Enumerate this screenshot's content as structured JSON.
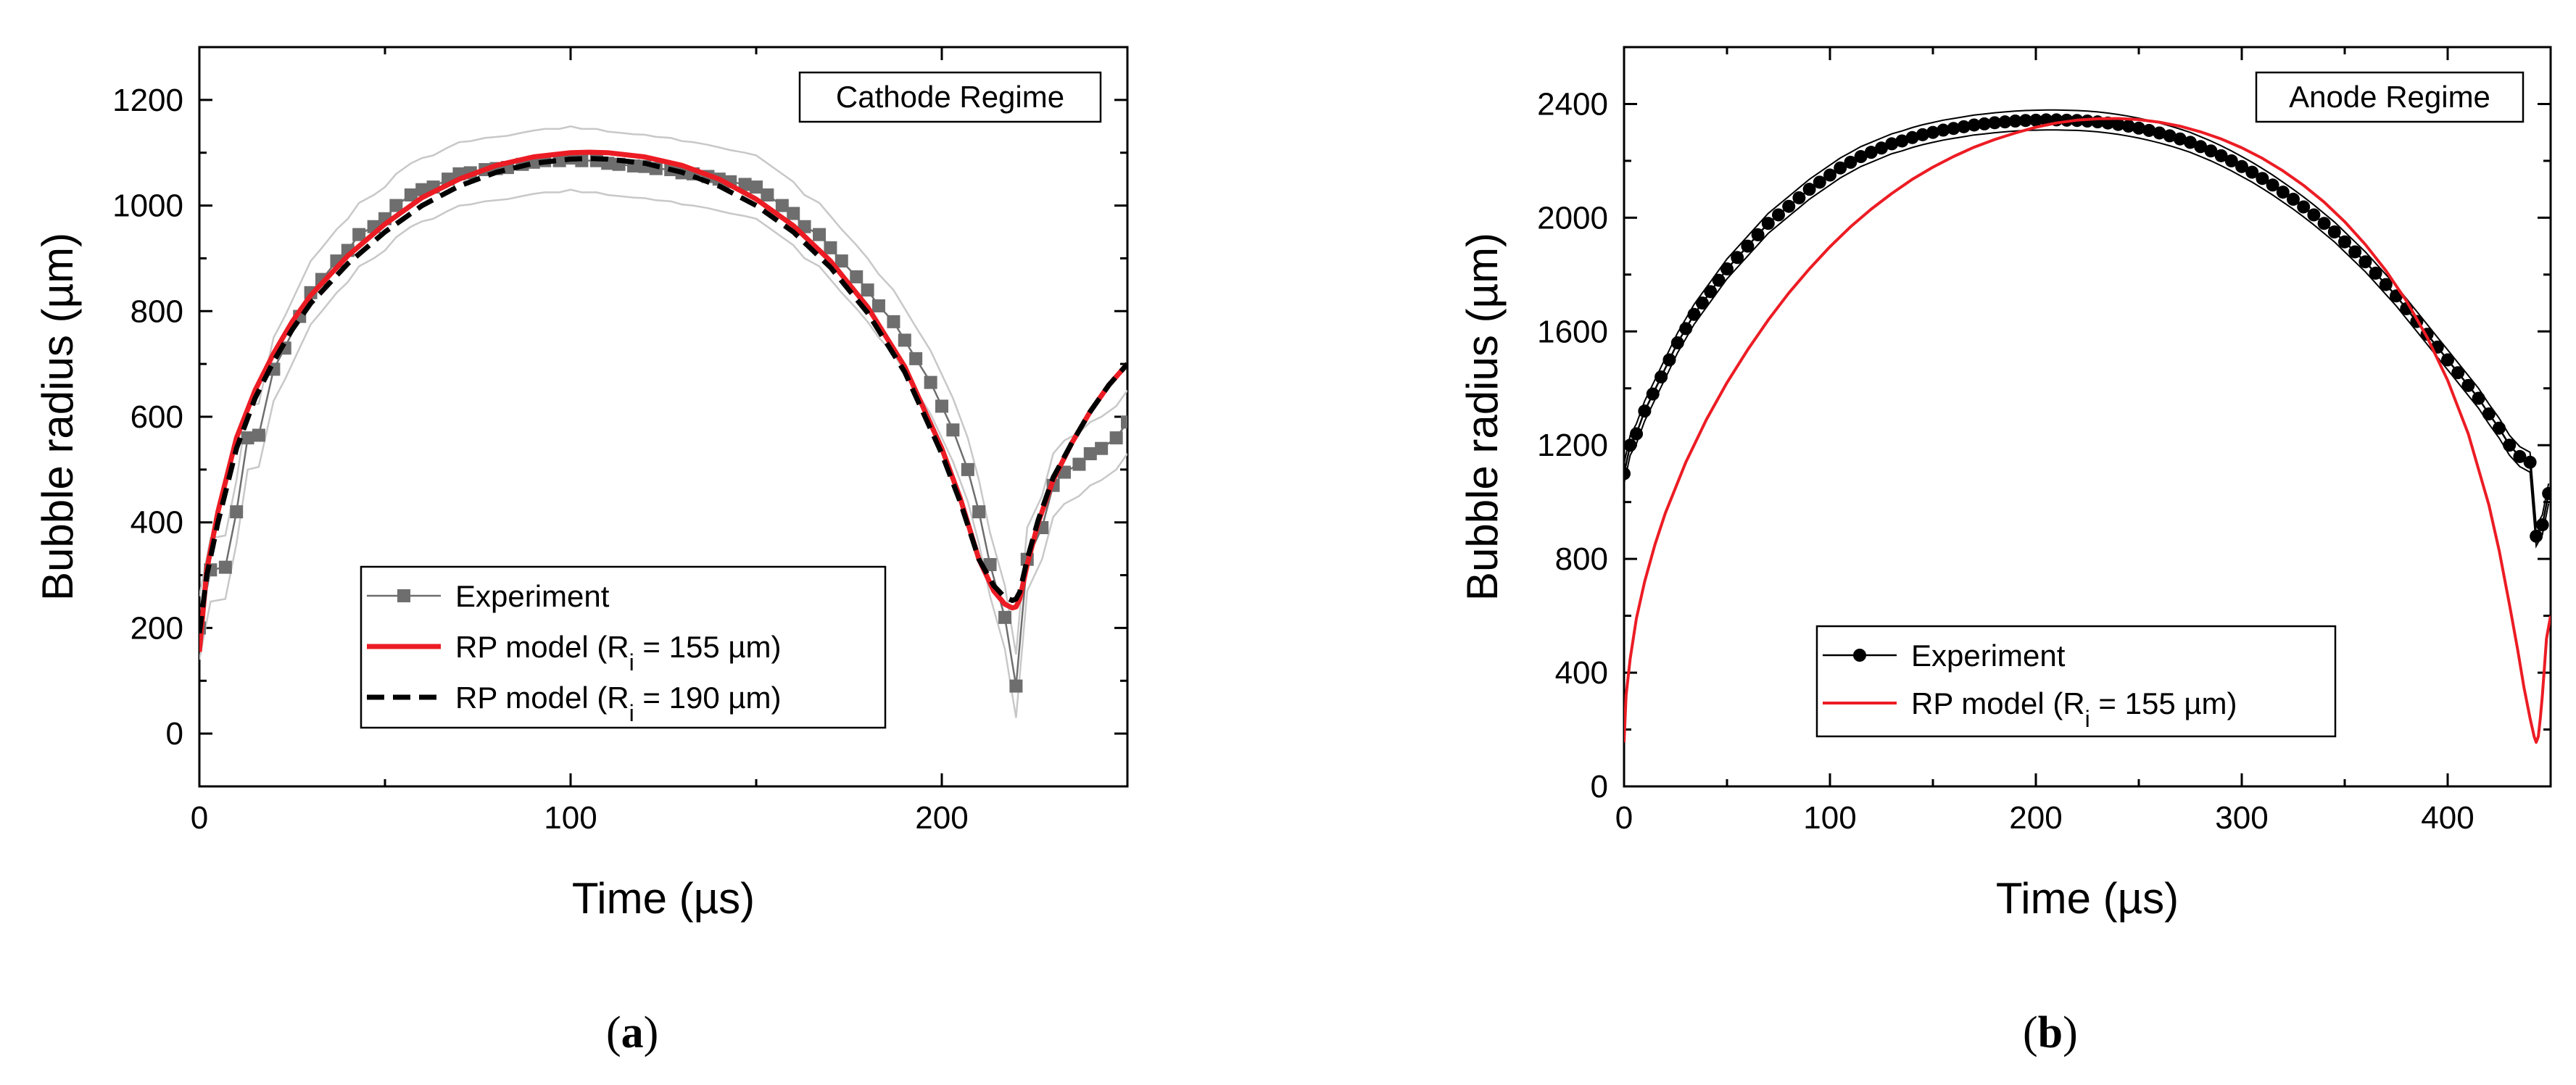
{
  "panels": [
    {
      "label_open": "(",
      "label_letter": "a",
      "label_close": ")"
    },
    {
      "label_open": "(",
      "label_letter": "b",
      "label_close": ")"
    }
  ],
  "chart_data": [
    {
      "type": "line",
      "regime_label": "Cathode Regime",
      "xlabel": "Time (µs)",
      "ylabel": "Bubble radius (µm)",
      "xlim": [
        0,
        250
      ],
      "ylim": [
        -100,
        1300
      ],
      "xticks": [
        0,
        100,
        200
      ],
      "yticks": [
        0,
        200,
        400,
        600,
        800,
        1000,
        1200
      ],
      "legend_position": "lower-center",
      "series": [
        {
          "name": "Experiment",
          "style": "square-markers-grey",
          "color": "#6e6e6e",
          "x": [
            0,
            3,
            7,
            10,
            13,
            16,
            20,
            23,
            27,
            30,
            33,
            37,
            40,
            43,
            47,
            50,
            53,
            57,
            60,
            63,
            67,
            70,
            73,
            77,
            80,
            83,
            87,
            90,
            93,
            97,
            100,
            103,
            107,
            110,
            113,
            117,
            120,
            123,
            127,
            130,
            133,
            137,
            140,
            143,
            147,
            150,
            153,
            157,
            160,
            163,
            167,
            170,
            173,
            177,
            180,
            183,
            187,
            190,
            193,
            197,
            200,
            203,
            207,
            210,
            213,
            217,
            220,
            223,
            227,
            230,
            233,
            237,
            240,
            243,
            247,
            250
          ],
          "y": [
            200,
            310,
            315,
            420,
            560,
            565,
            690,
            730,
            790,
            835,
            860,
            895,
            915,
            945,
            960,
            975,
            1000,
            1020,
            1030,
            1035,
            1050,
            1060,
            1062,
            1068,
            1070,
            1072,
            1078,
            1082,
            1085,
            1085,
            1090,
            1085,
            1085,
            1080,
            1078,
            1075,
            1074,
            1070,
            1068,
            1062,
            1060,
            1055,
            1050,
            1045,
            1040,
            1035,
            1020,
            1000,
            985,
            960,
            945,
            920,
            895,
            865,
            840,
            810,
            780,
            745,
            710,
            665,
            620,
            575,
            500,
            420,
            320,
            220,
            90,
            330,
            390,
            470,
            495,
            510,
            530,
            540,
            560,
            590
          ]
        },
        {
          "name": "RP model (R_i = 155 µm)",
          "style": "solid-red",
          "color": "#ec1c24",
          "x": [
            0,
            2,
            5,
            10,
            15,
            20,
            25,
            30,
            40,
            50,
            60,
            70,
            80,
            90,
            100,
            105,
            110,
            120,
            130,
            140,
            150,
            160,
            170,
            180,
            190,
            200,
            205,
            210,
            214,
            217,
            219,
            220,
            221,
            223,
            226,
            230,
            235,
            240,
            245,
            250
          ],
          "y": [
            155,
            310,
            420,
            560,
            650,
            720,
            780,
            830,
            905,
            965,
            1015,
            1050,
            1076,
            1092,
            1100,
            1101,
            1100,
            1092,
            1076,
            1050,
            1012,
            962,
            895,
            808,
            695,
            540,
            445,
            330,
            270,
            245,
            238,
            240,
            255,
            320,
            400,
            480,
            550,
            610,
            660,
            700
          ]
        },
        {
          "name": "RP model (R_i = 190 µm)",
          "style": "dashed-black",
          "color": "#000000",
          "x": [
            0,
            2,
            5,
            10,
            15,
            20,
            25,
            30,
            40,
            50,
            60,
            70,
            80,
            90,
            100,
            105,
            110,
            120,
            130,
            140,
            150,
            160,
            170,
            180,
            190,
            200,
            205,
            210,
            214,
            217,
            219,
            220,
            221,
            223,
            226,
            230,
            235,
            240,
            245,
            250
          ],
          "y": [
            190,
            300,
            400,
            540,
            635,
            705,
            765,
            815,
            890,
            950,
            1000,
            1037,
            1063,
            1080,
            1088,
            1089,
            1088,
            1080,
            1063,
            1037,
            1000,
            950,
            883,
            797,
            685,
            530,
            438,
            330,
            280,
            258,
            252,
            255,
            268,
            330,
            405,
            485,
            550,
            610,
            660,
            700
          ]
        }
      ]
    },
    {
      "type": "line",
      "regime_label": "Anode Regime",
      "xlabel": "Time (µs)",
      "ylabel": "Bubble radius (µm)",
      "xlim": [
        0,
        450
      ],
      "ylim": [
        0,
        2600
      ],
      "xticks": [
        0,
        100,
        200,
        300,
        400
      ],
      "yticks": [
        0,
        400,
        800,
        1200,
        1600,
        2000,
        2400
      ],
      "legend_position": "lower-center",
      "series": [
        {
          "name": "Experiment",
          "style": "circle-markers-black",
          "color": "#000000",
          "x": [
            0,
            3,
            6,
            10,
            14,
            18,
            22,
            26,
            30,
            34,
            38,
            42,
            46,
            50,
            55,
            60,
            65,
            70,
            75,
            80,
            85,
            90,
            95,
            100,
            105,
            110,
            115,
            120,
            125,
            130,
            135,
            140,
            145,
            150,
            155,
            160,
            165,
            170,
            175,
            180,
            185,
            190,
            195,
            200,
            205,
            210,
            215,
            220,
            225,
            230,
            235,
            240,
            245,
            250,
            255,
            260,
            265,
            270,
            275,
            280,
            285,
            290,
            295,
            300,
            305,
            310,
            315,
            320,
            325,
            330,
            335,
            340,
            345,
            350,
            355,
            360,
            365,
            370,
            375,
            380,
            385,
            390,
            395,
            400,
            405,
            410,
            415,
            420,
            425,
            430,
            435,
            440,
            443,
            446,
            449
          ],
          "y": [
            1100,
            1200,
            1240,
            1320,
            1380,
            1440,
            1500,
            1560,
            1610,
            1660,
            1700,
            1740,
            1780,
            1820,
            1860,
            1900,
            1940,
            1980,
            2010,
            2040,
            2070,
            2100,
            2125,
            2150,
            2175,
            2195,
            2215,
            2230,
            2245,
            2260,
            2270,
            2282,
            2292,
            2300,
            2308,
            2314,
            2320,
            2326,
            2330,
            2334,
            2337,
            2340,
            2342,
            2343,
            2344,
            2344,
            2343,
            2342,
            2340,
            2337,
            2333,
            2328,
            2322,
            2315,
            2307,
            2298,
            2288,
            2277,
            2265,
            2250,
            2235,
            2218,
            2200,
            2180,
            2160,
            2138,
            2115,
            2090,
            2065,
            2038,
            2010,
            1980,
            1950,
            1915,
            1880,
            1845,
            1805,
            1765,
            1725,
            1680,
            1635,
            1590,
            1545,
            1500,
            1455,
            1410,
            1365,
            1310,
            1260,
            1200,
            1160,
            1140,
            880,
            920,
            1030
          ]
        },
        {
          "name": "RP model (R_i = 155 µm)",
          "style": "solid-red",
          "color": "#ec1c24",
          "x": [
            0,
            1,
            3,
            6,
            10,
            15,
            20,
            30,
            40,
            50,
            60,
            70,
            80,
            90,
            100,
            110,
            120,
            130,
            140,
            150,
            160,
            170,
            180,
            190,
            200,
            205,
            210,
            220,
            230,
            240,
            250,
            260,
            270,
            280,
            290,
            300,
            310,
            320,
            330,
            340,
            350,
            360,
            370,
            380,
            390,
            400,
            410,
            420,
            425,
            430,
            434,
            437,
            440,
            442,
            443,
            444,
            445,
            446,
            447,
            448,
            450
          ],
          "y": [
            155,
            320,
            450,
            590,
            720,
            850,
            960,
            1140,
            1290,
            1420,
            1535,
            1640,
            1735,
            1820,
            1898,
            1968,
            2030,
            2085,
            2135,
            2178,
            2215,
            2248,
            2275,
            2298,
            2318,
            2326,
            2333,
            2343,
            2348,
            2349,
            2345,
            2336,
            2322,
            2302,
            2277,
            2246,
            2209,
            2165,
            2114,
            2055,
            1986,
            1906,
            1814,
            1707,
            1580,
            1428,
            1240,
            990,
            830,
            640,
            480,
            350,
            240,
            175,
            155,
            175,
            240,
            320,
            420,
            520,
            600
          ]
        }
      ]
    }
  ]
}
